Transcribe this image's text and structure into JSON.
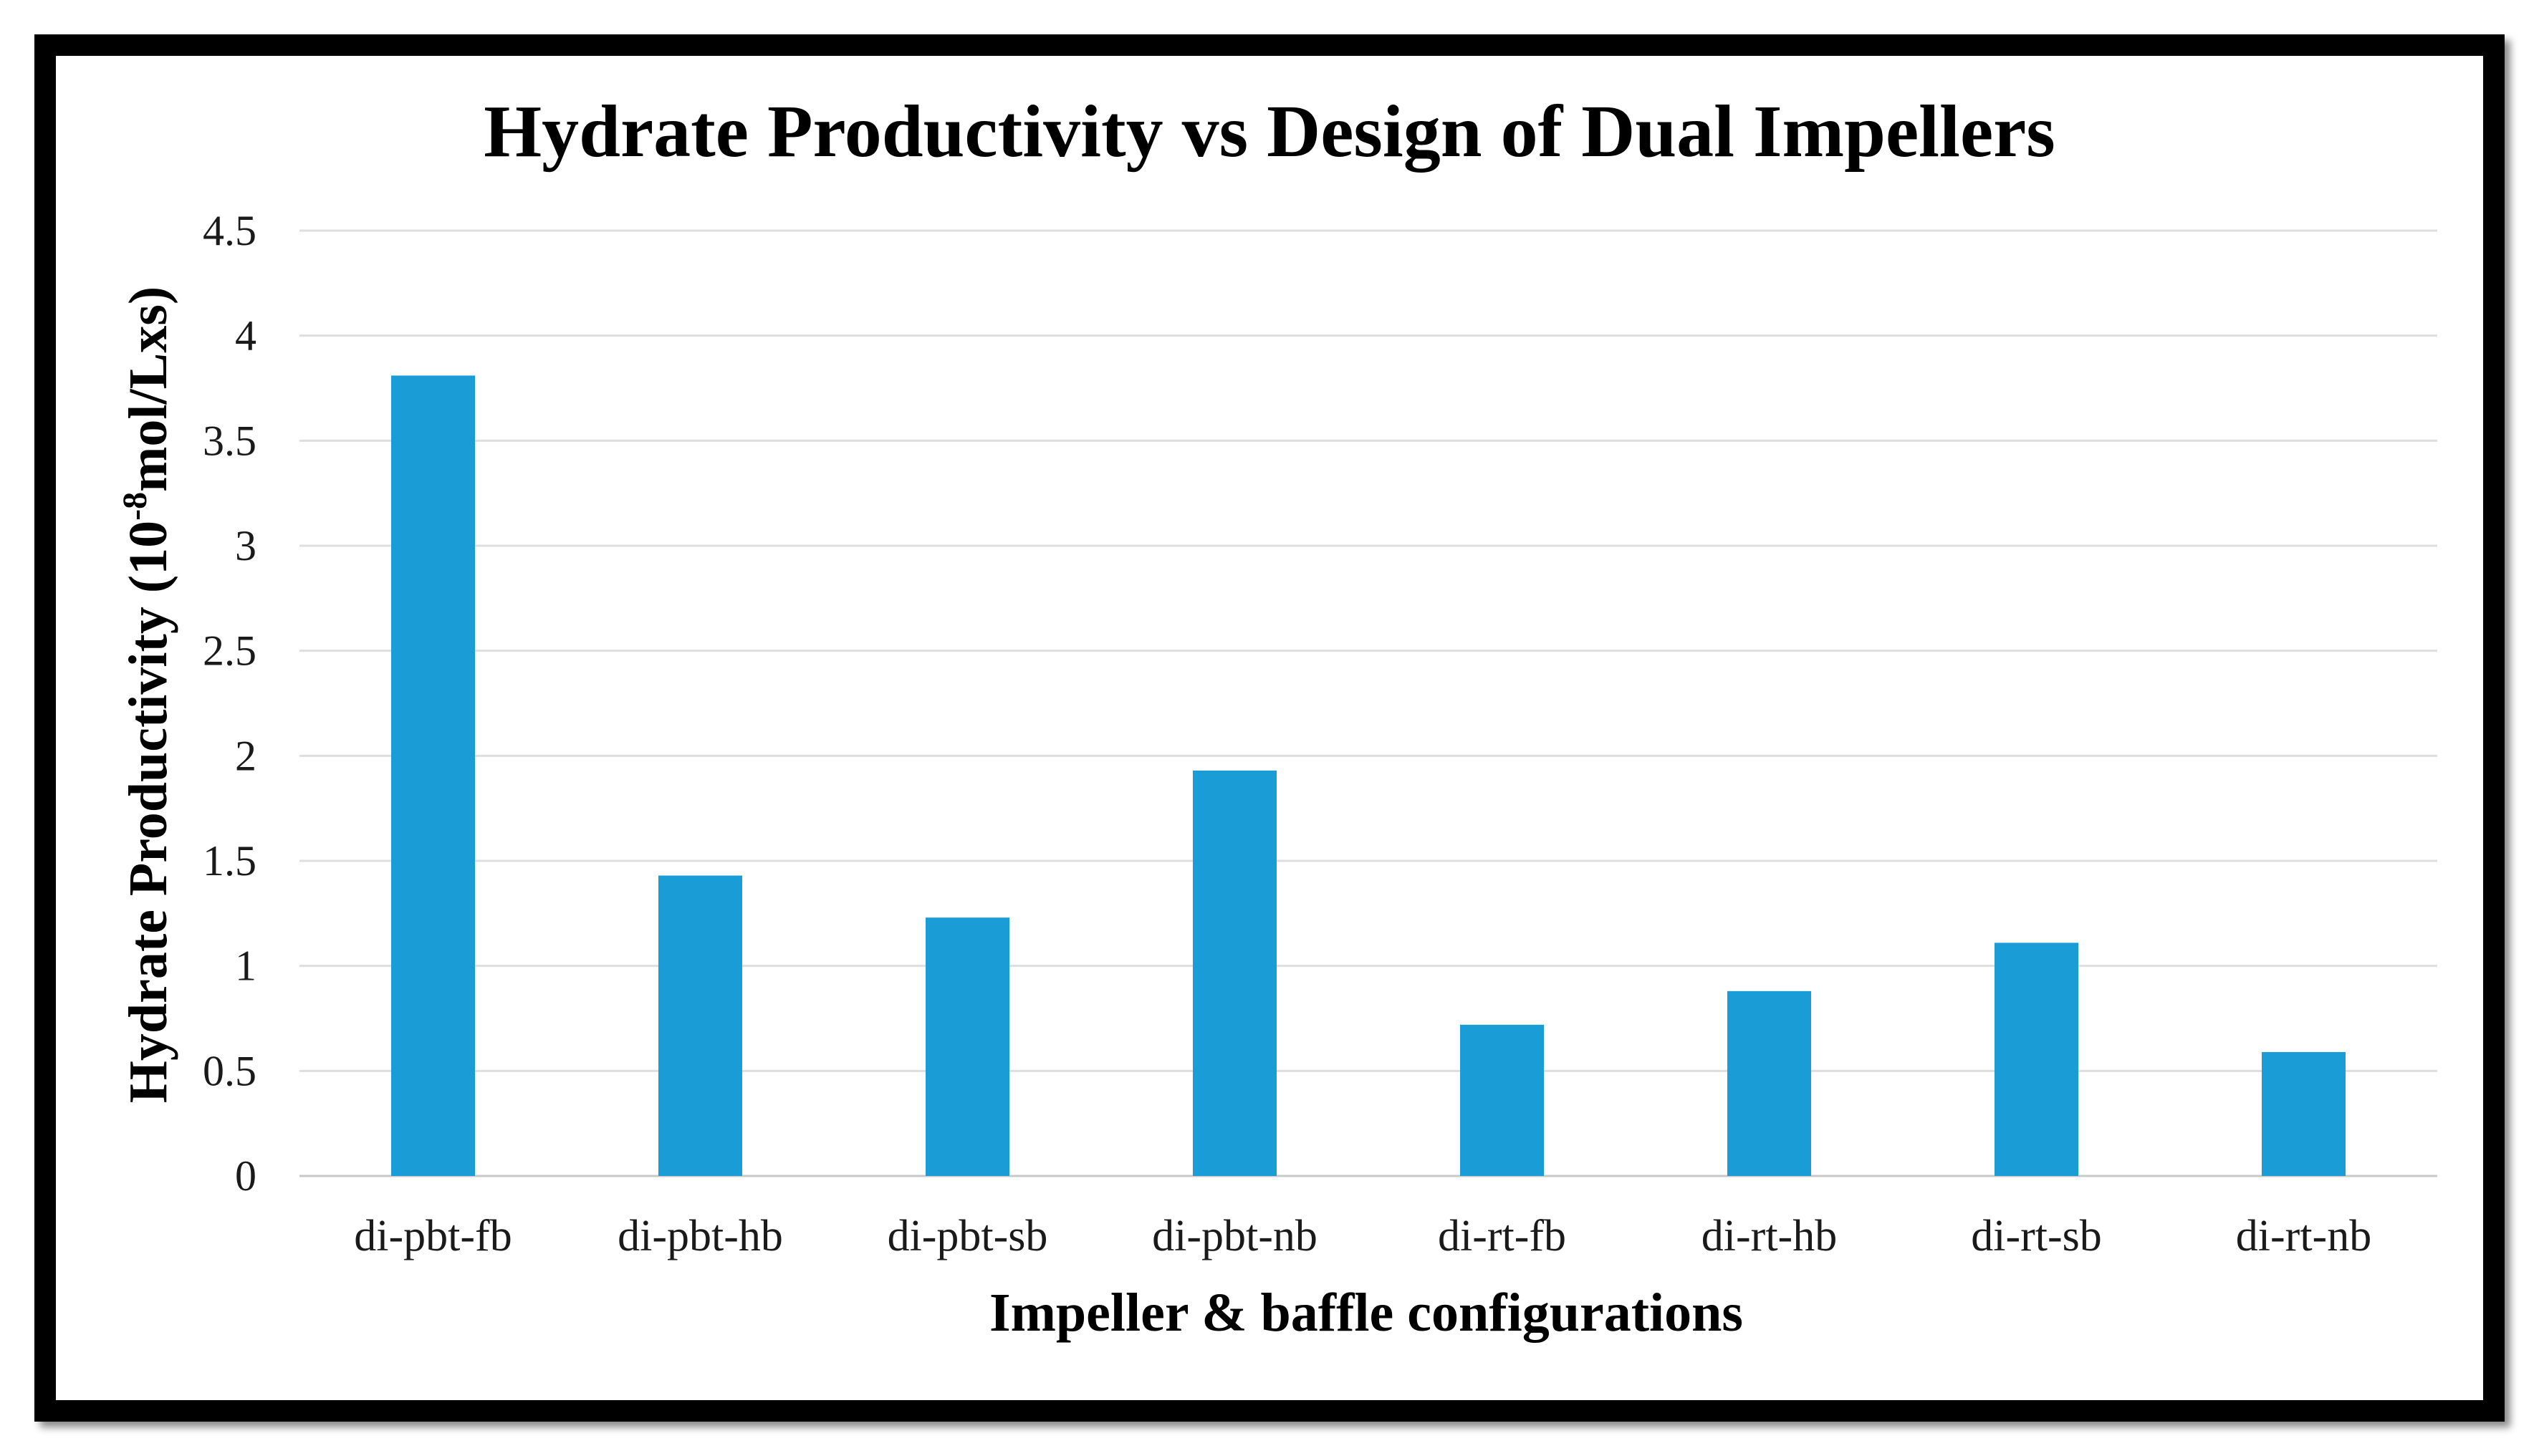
{
  "chart_data": {
    "type": "bar",
    "title": "Hydrate Productivity vs Design of Dual Impellers",
    "xlabel": "Impeller & baffle configurations",
    "ylabel_main": "Hydrate Productivity (10",
    "ylabel_sup": "-8",
    "ylabel_tail": "mol/Lxs)",
    "categories": [
      "di-pbt-fb",
      "di-pbt-hb",
      "di-pbt-sb",
      "di-pbt-nb",
      "di-rt-fb",
      "di-rt-hb",
      "di-rt-sb",
      "di-rt-nb"
    ],
    "values": [
      3.81,
      1.43,
      1.23,
      1.93,
      0.72,
      0.88,
      1.11,
      0.59
    ],
    "ylim": [
      0,
      4.5
    ],
    "yticks": [
      "0",
      "0.5",
      "1",
      "1.5",
      "2",
      "2.5",
      "3",
      "3.5",
      "4",
      "4.5"
    ],
    "grid": true,
    "legend": "none",
    "bar_color": "#1a9cd7"
  }
}
